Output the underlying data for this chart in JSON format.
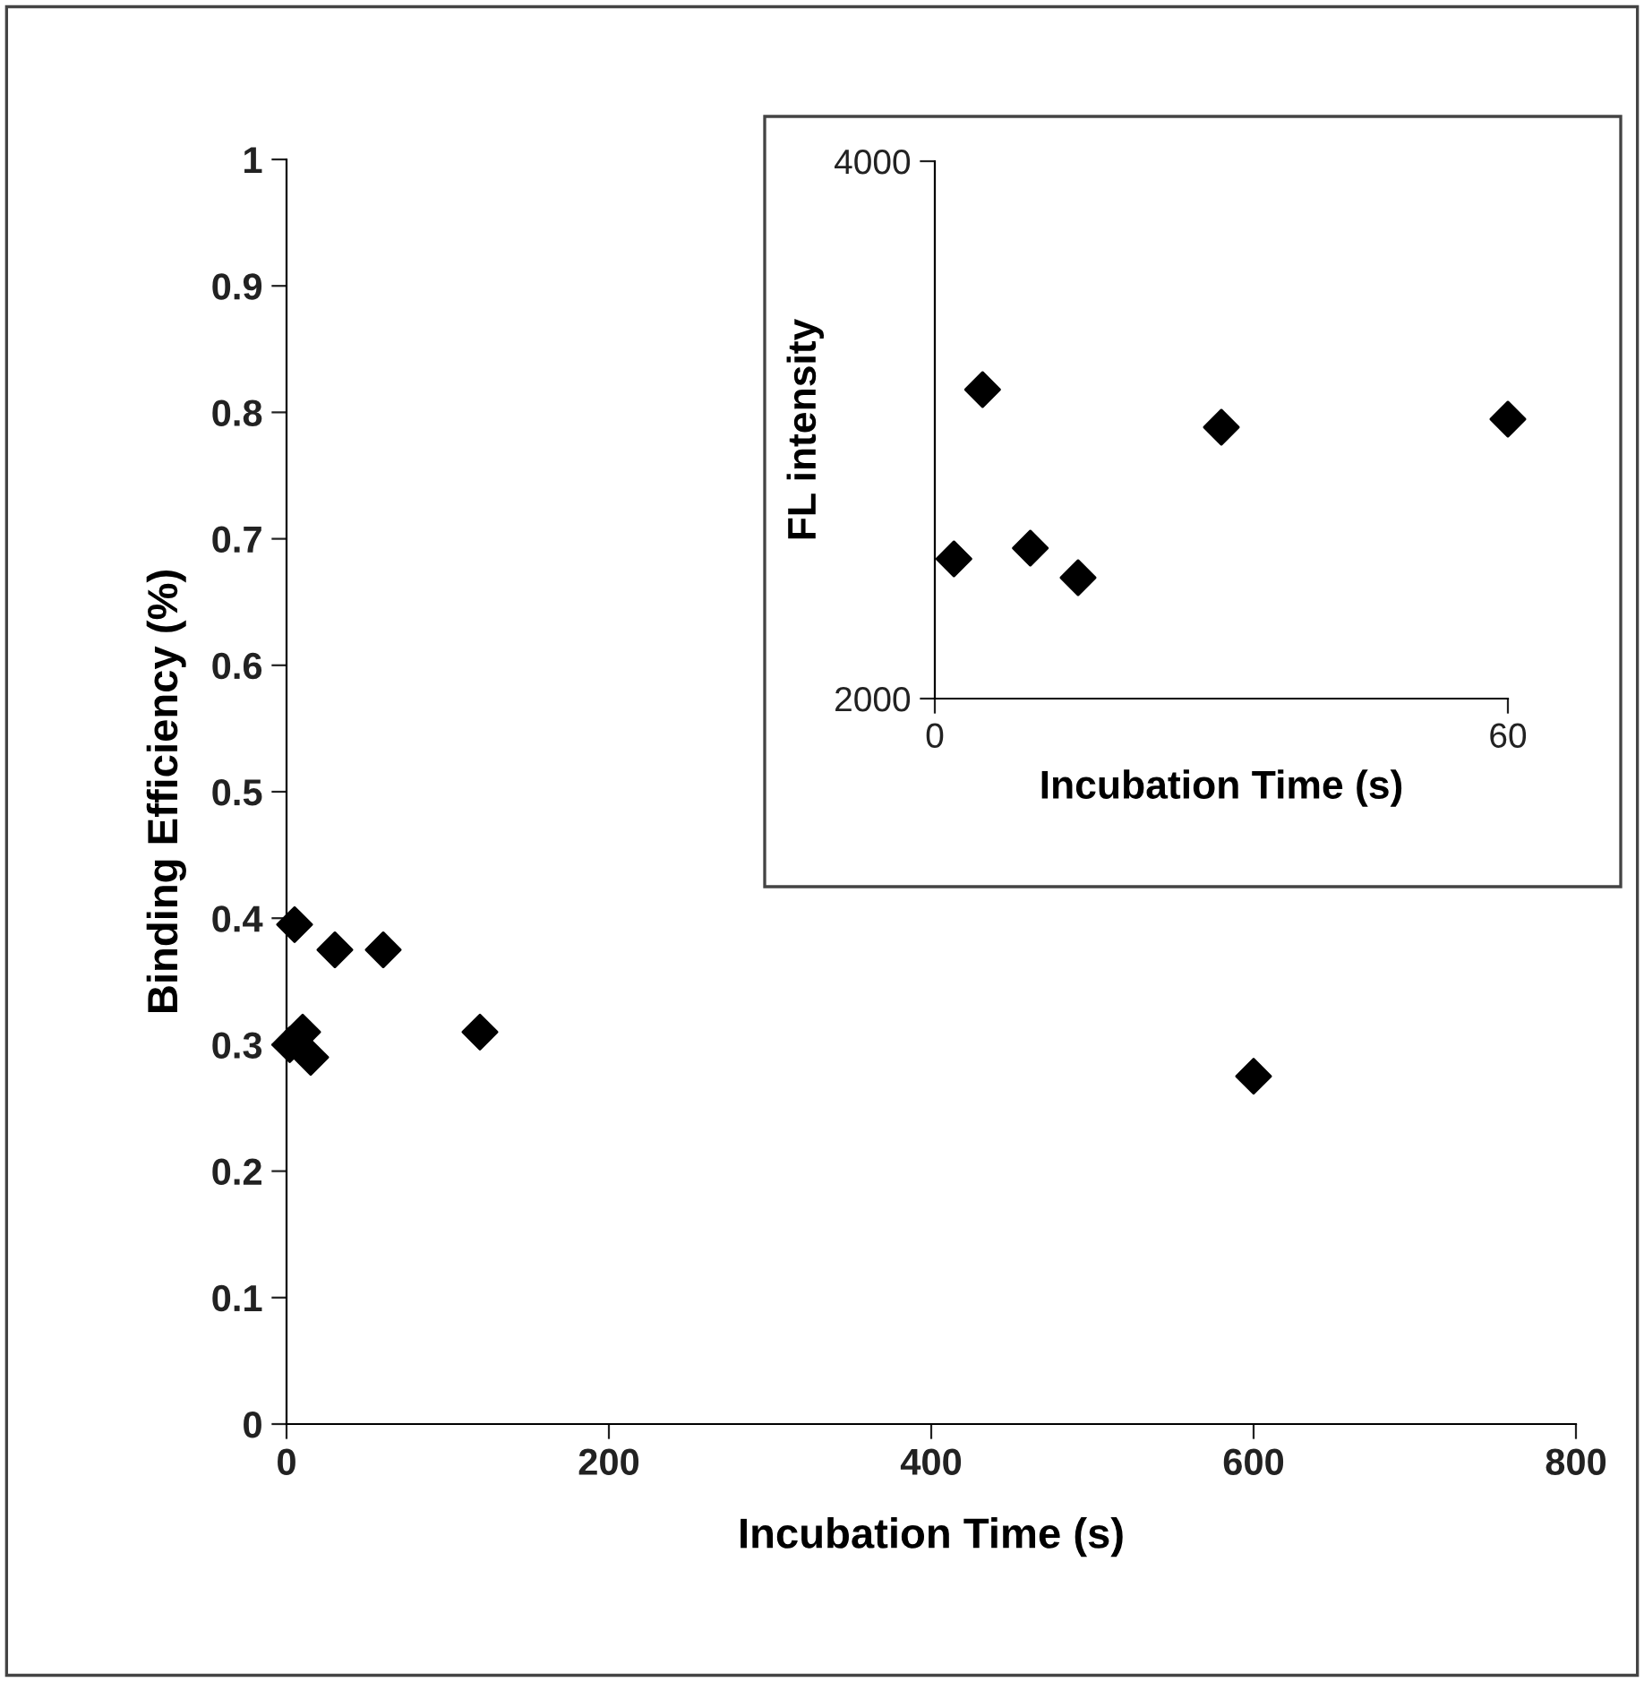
{
  "chart_data": [
    {
      "type": "scatter",
      "xlabel": "Incubation Time (s)",
      "ylabel": "Binding Efficiency (%)",
      "x": [
        2,
        5,
        10,
        15,
        30,
        60,
        120,
        600
      ],
      "series": [
        {
          "color": "#000000",
          "values": [
            0.3,
            0.395,
            0.31,
            0.29,
            0.375,
            0.375,
            0.31,
            0.275
          ]
        }
      ],
      "xlim": [
        0,
        800
      ],
      "xticks": [
        0,
        200,
        400,
        600,
        800
      ],
      "ylim": [
        0,
        1
      ],
      "yticks": [
        0,
        0.1,
        0.2,
        0.3,
        0.4,
        0.5,
        0.6,
        0.7,
        0.8,
        0.9,
        1
      ],
      "marker": "diamond",
      "grid": false,
      "legend": false
    },
    {
      "type": "scatter",
      "xlabel": "Incubation Time (s)",
      "ylabel": "FL intensity",
      "x": [
        2,
        5,
        10,
        15,
        30,
        60
      ],
      "series": [
        {
          "color": "#000000",
          "values": [
            2520,
            3150,
            2560,
            2450,
            3010,
            3040
          ]
        }
      ],
      "xlim": [
        0,
        60
      ],
      "xticks": [
        0,
        60
      ],
      "ylim": [
        2000,
        4000
      ],
      "yticks": [
        2000,
        4000
      ],
      "marker": "diamond",
      "grid": false,
      "legend": false
    }
  ]
}
